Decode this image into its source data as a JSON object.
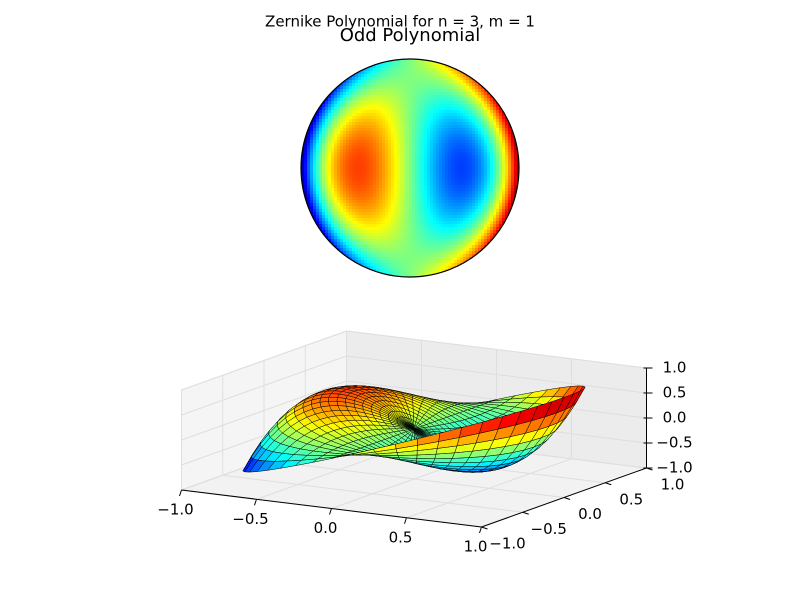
{
  "title": "Zernike Polynomial for n = 3, m = 1",
  "chart_data": [
    {
      "type": "heatmap",
      "title": "Odd Polynomial",
      "colormap": "jet"
    },
    {
      "type": "surface3d",
      "colormap": "jet",
      "xlim": [
        -1,
        1
      ],
      "ylim": [
        -1,
        1
      ],
      "zlim": [
        -1,
        1
      ],
      "xticks": [
        {
          "value": -1,
          "label": "−1.0"
        },
        {
          "value": -0.5,
          "label": "−0.5"
        },
        {
          "value": 0,
          "label": "0.0"
        },
        0.5,
        {
          "value": 1,
          "label": "1.0"
        }
      ],
      "yticks": [
        {
          "value": -1,
          "label": "−1.0"
        },
        {
          "value": -0.5,
          "label": "−0.5"
        },
        {
          "value": 0,
          "label": "0.0"
        },
        0.5,
        {
          "value": 1,
          "label": "1.0"
        }
      ],
      "zticks": [
        {
          "value": -1,
          "label": "−1.0"
        },
        {
          "value": -0.5,
          "label": "−0.5"
        },
        {
          "value": 0,
          "label": "0.0"
        },
        0.5,
        {
          "value": 1,
          "label": "1.0"
        }
      ],
      "grid": true
    }
  ]
}
